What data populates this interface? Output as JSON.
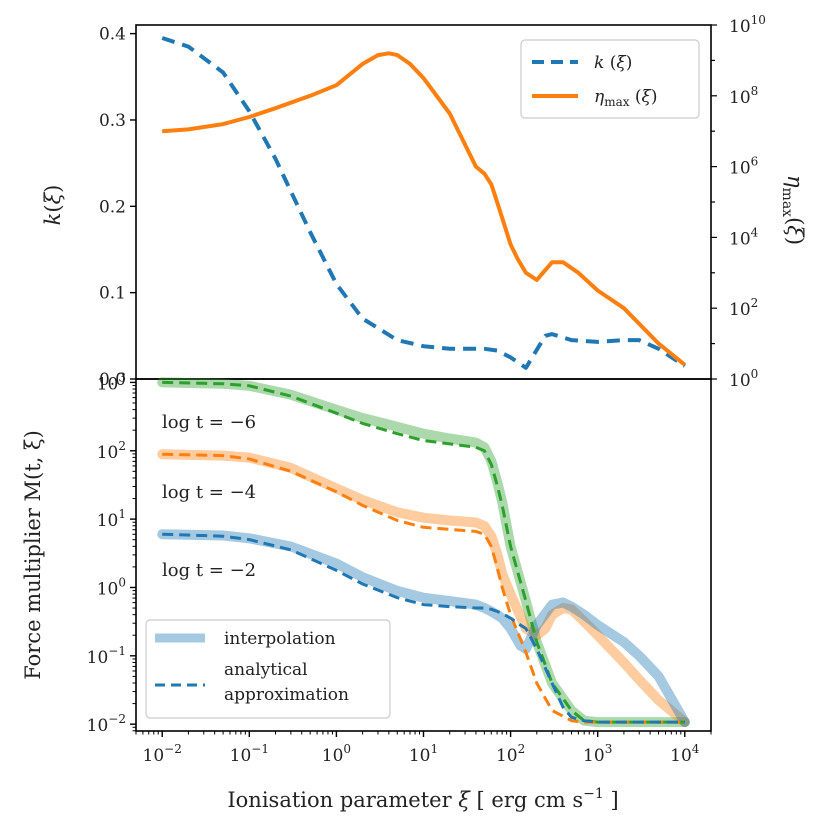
{
  "chart_data": [
    {
      "type": "line",
      "panel": "top",
      "xscale": "log",
      "xlim": [
        0.005,
        20000
      ],
      "ylabel_left": "k(ξ)",
      "ylabel_right": "η_max (ξ)",
      "ylim_left": [
        0,
        0.41
      ],
      "ylim_right_log10": [
        0,
        10
      ],
      "left_ticks": [
        "0.0",
        "0.1",
        "0.2",
        "0.3",
        "0.4"
      ],
      "right_ticks": [
        {
          "base": "10",
          "exp": "0"
        },
        {
          "base": "10",
          "exp": "2"
        },
        {
          "base": "10",
          "exp": "4"
        },
        {
          "base": "10",
          "exp": "6"
        },
        {
          "base": "10",
          "exp": "8"
        },
        {
          "base": "10",
          "exp": "10"
        }
      ],
      "legend": {
        "placement": "top-right",
        "entries": [
          "k (ξ)",
          "η_max (ξ)"
        ]
      },
      "series": [
        {
          "name": "k (ξ)",
          "axis": "left",
          "color": "#1f77b4",
          "style": "dashed",
          "x": [
            0.01,
            0.02,
            0.05,
            0.1,
            0.2,
            0.5,
            1,
            2,
            5,
            10,
            20,
            50,
            70,
            100,
            150,
            250,
            300,
            500,
            1000,
            2000,
            3000,
            5000,
            10000
          ],
          "y": [
            0.395,
            0.385,
            0.355,
            0.31,
            0.255,
            0.17,
            0.11,
            0.07,
            0.045,
            0.038,
            0.035,
            0.035,
            0.033,
            0.025,
            0.013,
            0.05,
            0.052,
            0.045,
            0.043,
            0.045,
            0.045,
            0.035,
            0.015
          ]
        },
        {
          "name": "η_max (ξ)",
          "axis": "right",
          "color": "#ff7f0e",
          "style": "solid",
          "x": [
            0.01,
            0.02,
            0.05,
            0.1,
            0.2,
            0.5,
            1,
            2,
            3,
            4,
            5,
            7,
            10,
            20,
            40,
            50,
            60,
            70,
            100,
            120,
            150,
            200,
            300,
            400,
            600,
            1000,
            2000,
            5000,
            10000
          ],
          "y_log10": [
            7.0,
            7.05,
            7.2,
            7.4,
            7.65,
            8.0,
            8.3,
            8.9,
            9.15,
            9.2,
            9.15,
            8.9,
            8.5,
            7.5,
            6.0,
            5.8,
            5.5,
            5.0,
            3.8,
            3.4,
            3.0,
            2.8,
            3.3,
            3.3,
            3.0,
            2.5,
            2.0,
            1.0,
            0.4
          ]
        }
      ]
    },
    {
      "type": "line",
      "panel": "bottom",
      "xscale": "log",
      "yscale": "log",
      "xlim": [
        0.005,
        20000
      ],
      "ylim_log10": [
        -2.1,
        3.05
      ],
      "xlabel_main": "Ionisation parameter ",
      "xlabel_sym": "ξ",
      "xlabel_unit": " [ erg cm s",
      "xlabel_exp": "−1",
      "xlabel_end": " ]",
      "ylabel": "Force multiplier M(t, ξ)",
      "x_ticks": [
        {
          "base": "10",
          "exp": "−2"
        },
        {
          "base": "10",
          "exp": "−1"
        },
        {
          "base": "10",
          "exp": "0"
        },
        {
          "base": "10",
          "exp": "1"
        },
        {
          "base": "10",
          "exp": "2"
        },
        {
          "base": "10",
          "exp": "3"
        },
        {
          "base": "10",
          "exp": "4"
        }
      ],
      "y_ticks": [
        {
          "base": "10",
          "exp": "−2"
        },
        {
          "base": "10",
          "exp": "−1"
        },
        {
          "base": "10",
          "exp": "0"
        },
        {
          "base": "10",
          "exp": "1"
        },
        {
          "base": "10",
          "exp": "2"
        },
        {
          "base": "10",
          "exp": "3"
        }
      ],
      "annotations": [
        "log t = −6",
        "log t = −4",
        "log t = −2"
      ],
      "legend": {
        "placement": "bottom-left",
        "entries": [
          "interpolation",
          "analytical",
          "approximation"
        ]
      },
      "series": [
        {
          "name": "log t = −6",
          "color": "#2ca02c",
          "x": [
            0.01,
            0.05,
            0.1,
            0.3,
            1,
            2,
            5,
            10,
            20,
            40,
            50,
            60,
            70,
            80,
            100,
            150,
            200,
            300,
            500,
            700,
            1000,
            2000,
            5000,
            10000
          ],
          "y_log10": [
            3.0,
            2.98,
            2.95,
            2.8,
            2.55,
            2.4,
            2.25,
            2.15,
            2.1,
            2.05,
            2.0,
            1.8,
            1.5,
            1.2,
            0.6,
            -0.2,
            -0.8,
            -1.4,
            -1.8,
            -1.95,
            -1.97,
            -1.97,
            -1.97,
            -1.97
          ],
          "interp_y_log10": [
            3.0,
            2.98,
            2.95,
            2.82,
            2.6,
            2.48,
            2.35,
            2.25,
            2.18,
            2.12,
            2.05,
            1.85,
            1.55,
            1.25,
            0.6,
            -0.2,
            -0.8,
            -1.4,
            -1.8,
            -1.95,
            -1.97,
            -1.97,
            -1.97,
            -1.97
          ]
        },
        {
          "name": "log t = −4",
          "color": "#ff7f0e",
          "x": [
            0.01,
            0.05,
            0.1,
            0.3,
            1,
            2,
            5,
            10,
            20,
            40,
            50,
            60,
            70,
            80,
            100,
            150,
            200,
            300,
            500,
            700,
            1000,
            2000,
            5000,
            10000
          ],
          "y_log10": [
            1.95,
            1.93,
            1.88,
            1.7,
            1.4,
            1.2,
            0.98,
            0.88,
            0.85,
            0.82,
            0.78,
            0.6,
            0.3,
            0.0,
            -0.4,
            -0.95,
            -1.4,
            -1.8,
            -1.95,
            -1.97,
            -1.97,
            -1.97,
            -1.97,
            -1.97
          ],
          "interp": {
            "x": [
              0.01,
              0.05,
              0.1,
              0.3,
              1,
              2,
              5,
              10,
              20,
              40,
              50,
              60,
              70,
              80,
              100,
              150,
              200,
              250,
              300,
              400,
              500,
              700,
              1000,
              2000,
              3000,
              5000,
              10000
            ],
            "y_log10": [
              1.95,
              1.93,
              1.9,
              1.75,
              1.45,
              1.28,
              1.1,
              1.02,
              0.98,
              0.95,
              0.9,
              0.75,
              0.5,
              0.2,
              -0.1,
              -0.6,
              -0.7,
              -0.6,
              -0.4,
              -0.3,
              -0.32,
              -0.5,
              -0.7,
              -1.1,
              -1.35,
              -1.65,
              -1.97
            ]
          }
        },
        {
          "name": "log t = −2",
          "color": "#1f77b4",
          "x": [
            0.01,
            0.05,
            0.1,
            0.3,
            1,
            2,
            5,
            10,
            20,
            40,
            50,
            60,
            70,
            80,
            100,
            130,
            150,
            200,
            300,
            400,
            500,
            700,
            1000,
            2000,
            3000,
            5000,
            10000
          ],
          "y_log10": [
            0.78,
            0.75,
            0.7,
            0.55,
            0.25,
            0.05,
            -0.15,
            -0.25,
            -0.28,
            -0.3,
            -0.3,
            -0.32,
            -0.35,
            -0.38,
            -0.45,
            -0.55,
            -0.6,
            -0.9,
            -1.4,
            -1.75,
            -1.9,
            -1.95,
            -1.97,
            -1.97,
            -1.97,
            -1.97,
            -1.97
          ],
          "interp_y_log10": [
            0.78,
            0.76,
            0.72,
            0.6,
            0.35,
            0.15,
            -0.05,
            -0.15,
            -0.2,
            -0.25,
            -0.3,
            -0.35,
            -0.4,
            -0.45,
            -0.6,
            -0.85,
            -0.9,
            -0.55,
            -0.25,
            -0.22,
            -0.28,
            -0.4,
            -0.55,
            -0.8,
            -1.0,
            -1.3,
            -1.97
          ]
        }
      ]
    }
  ]
}
